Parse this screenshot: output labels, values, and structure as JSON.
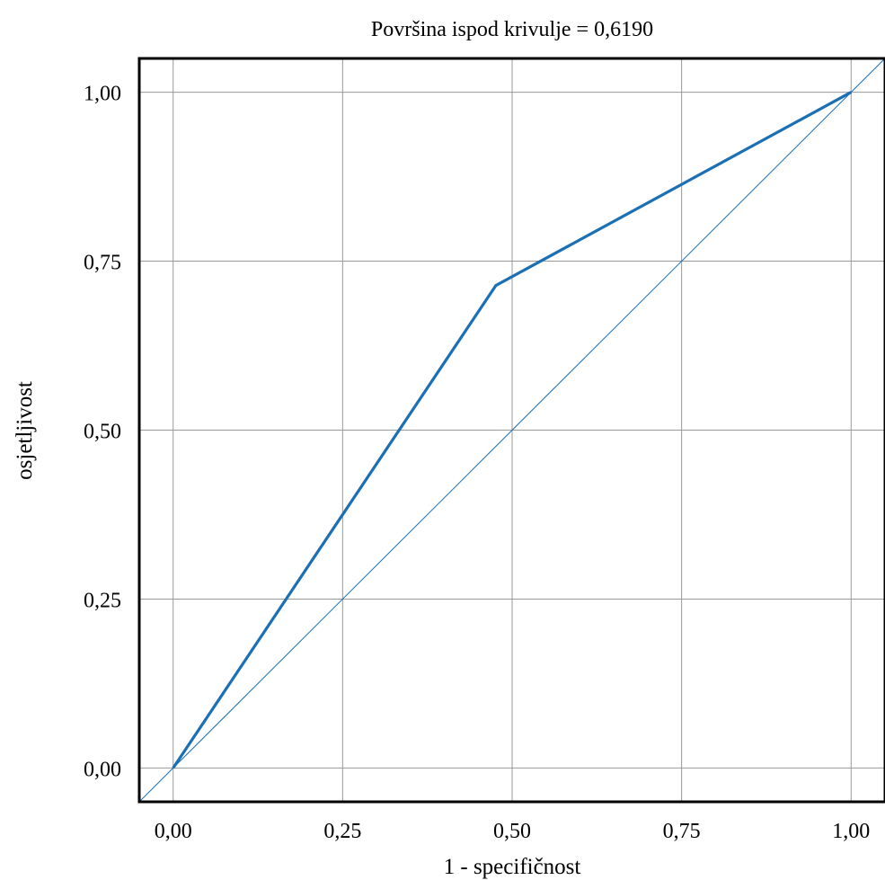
{
  "chart_data": {
    "type": "line",
    "title": "Površina ispod krivulje = 0,6190",
    "xlabel": "1 - specifičnost",
    "ylabel": "osjetljivost",
    "xlim": [
      -0.05,
      1.05
    ],
    "ylim": [
      -0.05,
      1.05
    ],
    "xticks": [
      0,
      0.25,
      0.5,
      0.75,
      1
    ],
    "yticks": [
      0,
      0.25,
      0.5,
      0.75,
      1
    ],
    "xtick_labels": [
      "0,00",
      "0,25",
      "0,50",
      "0,75",
      "1,00"
    ],
    "ytick_labels": [
      "0,00",
      "0,25",
      "0,50",
      "0,75",
      "1,00"
    ],
    "grid": true,
    "series": [
      {
        "x": [
          0,
          0.476,
          1
        ],
        "y": [
          0,
          0.714,
          1
        ],
        "color": "#1a6fb5"
      },
      {
        "x": [
          -0.05,
          1.05
        ],
        "y": [
          -0.05,
          1.05
        ],
        "color": "#1a6fb5"
      }
    ]
  }
}
